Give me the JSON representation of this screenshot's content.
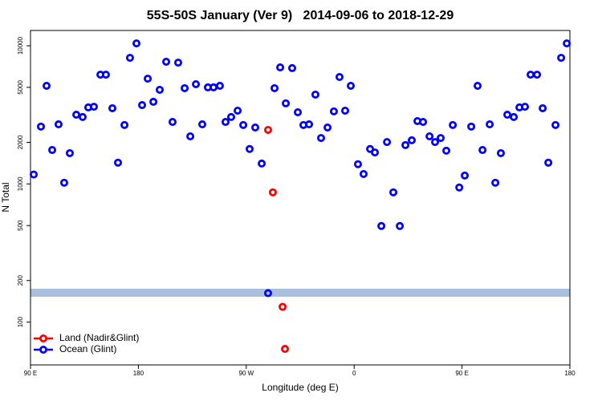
{
  "chart_data": {
    "type": "scatter",
    "title": "55S-50S January (Ver 9)   2014-09-06 to 2018-12-29",
    "x_label": "Longitude (deg E)",
    "y_label": "N Total",
    "log_y": true,
    "legend": "bottom-left",
    "xlim": [
      90,
      540
    ],
    "ylim": [
      49,
      12900
    ],
    "xticks": [
      {
        "value": 90,
        "label": "90 E"
      },
      180,
      {
        "value": 270,
        "label": "90 W"
      },
      {
        "value": 360,
        "label": "0"
      },
      {
        "value": 450,
        "label": "90 E"
      },
      {
        "value": 540,
        "label": "180"
      }
    ],
    "yticks": [
      100,
      200,
      500,
      1000,
      2000,
      5000,
      10000
    ],
    "series": [
      {
        "name": "Land (Nadir&Glint)",
        "color": "#ff0000",
        "x": [
          288.2,
          292.2,
          300.3,
          302.3
        ],
        "values": [
          2460,
          869,
          129,
          64
        ]
      },
      {
        "name": "Ocean (Glint)",
        "color": "#0000ff",
        "x": [
          92.7,
          98.7,
          103.4,
          108.1,
          113.4,
          118.1,
          122.8,
          128.2,
          133.5,
          138.2,
          142.9,
          148.3,
          152.9,
          158.3,
          163.0,
          168.4,
          173.0,
          178.4,
          183.1,
          187.8,
          192.5,
          197.8,
          203.2,
          208.5,
          213.2,
          218.6,
          223.3,
          228.0,
          233.3,
          238.0,
          242.7,
          248.0,
          252.7,
          257.4,
          262.8,
          267.5,
          272.8,
          277.5,
          282.9,
          288.2,
          293.6,
          298.3,
          303.0,
          308.3,
          313.0,
          317.7,
          322.4,
          327.7,
          332.4,
          337.8,
          343.1,
          347.8,
          352.5,
          357.2,
          363.2,
          367.9,
          373.3,
          377.3,
          382.7,
          387.4,
          392.7,
          398.1,
          402.8,
          408.1,
          412.8,
          417.5,
          422.9,
          427.5,
          432.2,
          436.9,
          442.3,
          447.7,
          452.3,
          457.7,
          463.0,
          467.1,
          473.1,
          477.8,
          482.4,
          487.8,
          493.2,
          497.9,
          502.5,
          507.2,
          512.6,
          517.3,
          522.0,
          528.0,
          532.7,
          537.4
        ],
        "values": [
          1170,
          2600,
          5130,
          1760,
          2700,
          1020,
          1670,
          3170,
          3050,
          3580,
          3620,
          6180,
          6180,
          3530,
          1425,
          2670,
          8180,
          10400,
          3720,
          5780,
          3930,
          4800,
          7660,
          2810,
          7550,
          4930,
          2210,
          5270,
          2700,
          5000,
          5000,
          5130,
          2810,
          3050,
          3390,
          2670,
          1790,
          2560,
          1405,
          162,
          4930,
          6970,
          3830,
          6890,
          3300,
          2670,
          2700,
          4430,
          2150,
          2560,
          3350,
          5940,
          3390,
          5130,
          1390,
          1180,
          1790,
          1690,
          496,
          2010,
          869,
          496,
          1910,
          2070,
          2850,
          2810,
          2210,
          2010,
          2150,
          1740,
          2670,
          942,
          1150,
          2600,
          5130,
          1760,
          2700,
          1020,
          1670,
          3170,
          3050,
          3580,
          3620,
          6180,
          6180,
          3530,
          1425,
          2670,
          8180,
          10400
        ]
      }
    ]
  }
}
